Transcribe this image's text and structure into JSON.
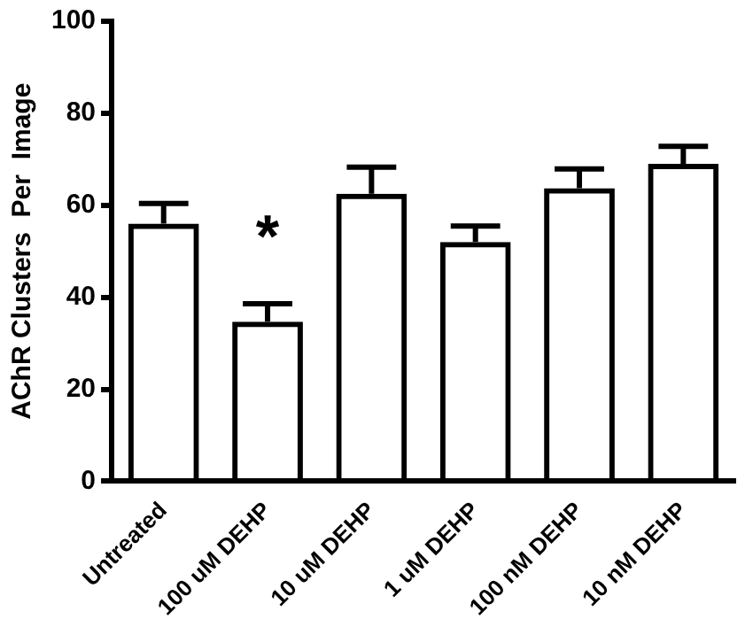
{
  "chart_data": {
    "type": "bar",
    "ylabel": "AChR Clusters  Per  Image",
    "categories": [
      "Untreated",
      "100 uM DEHP",
      "10 uM DEHP",
      "1 uM DEHP",
      "100 nM DEHP",
      "10 nM DEHP"
    ],
    "values": [
      56,
      34.7,
      62.5,
      52,
      63.7,
      69
    ],
    "errors": [
      [
        56,
        60.4
      ],
      [
        34.7,
        38.6
      ],
      [
        62.5,
        68.3
      ],
      [
        52,
        55.5
      ],
      [
        63.7,
        67.9
      ],
      [
        69,
        72.8
      ]
    ],
    "color": "#000000",
    "ylim": [
      0,
      100
    ],
    "yticks": [
      0,
      20,
      40,
      60,
      80,
      100
    ],
    "grid": false,
    "legend": false,
    "annotations": [
      "*"
    ]
  }
}
